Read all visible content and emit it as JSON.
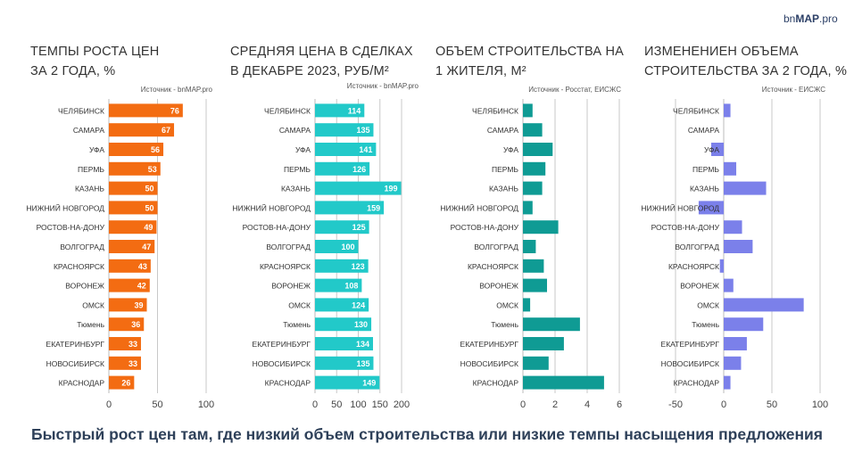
{
  "logo": {
    "text_a": "bn",
    "text_b": "MAP",
    "text_c": ".pro"
  },
  "footer": "Быстрый рост цен там, где низкий объем строительства или низкие темпы насыщения предложения",
  "chart_data": [
    {
      "type": "bar",
      "orientation": "horizontal",
      "title_line1": "ТЕМПЫ РОСТА ЦЕН",
      "title_line2": "ЗА 2 ГОДА, %",
      "source": "Источник - bnMAP.pro",
      "color": "#f36c12",
      "data_labels": true,
      "xlim": [
        0,
        100
      ],
      "ticks": [
        0,
        50,
        100
      ],
      "grid": true,
      "categories": [
        "ЧЕЛЯБИНСК",
        "САМАРА",
        "УФА",
        "ПЕРМЬ",
        "КАЗАНЬ",
        "НИЖНИЙ НОВГОРОД",
        "РОСТОВ-НА-ДОНУ",
        "ВОЛГОГРАД",
        "КРАСНОЯРСК",
        "ВОРОНЕЖ",
        "ОМСК",
        "Тюмень",
        "ЕКАТЕРИНБУРГ",
        "НОВОСИБИРСК",
        "КРАСНОДАР"
      ],
      "values": [
        76,
        67,
        56,
        53,
        50,
        50,
        49,
        47,
        43,
        42,
        39,
        36,
        33,
        33,
        26
      ]
    },
    {
      "type": "bar",
      "orientation": "horizontal",
      "title_line1": "СРЕДНЯЯ ЦЕНА  В СДЕЛКАХ",
      "title_line2": "В ДЕКАБРЕ 2023, РУБ/М²",
      "source": "Источник - bnMAP.pro",
      "color": "#22c9c9",
      "data_labels": true,
      "xlim": [
        0,
        200
      ],
      "ticks": [
        0,
        50,
        100,
        150,
        200
      ],
      "grid": true,
      "categories": [
        "ЧЕЛЯБИНСК",
        "САМАРА",
        "УФА",
        "ПЕРМЬ",
        "КАЗАНЬ",
        "НИЖНИЙ НОВГОРОД",
        "РОСТОВ-НА-ДОНУ",
        "ВОЛГОГРАД",
        "КРАСНОЯРСК",
        "ВОРОНЕЖ",
        "ОМСК",
        "Тюмень",
        "ЕКАТЕРИНБУРГ",
        "НОВОСИБИРСК",
        "КРАСНОДАР"
      ],
      "values": [
        114,
        135,
        141,
        126,
        199,
        159,
        125,
        100,
        123,
        108,
        124,
        130,
        134,
        135,
        149
      ]
    },
    {
      "type": "bar",
      "orientation": "horizontal",
      "title_line1": "ОБЪЕМ СТРОИТЕЛЬСТВА НА",
      "title_line2": "1 ЖИТЕЛЯ, М²",
      "source": "Источник - Росстат, ЕИСЖС",
      "color": "#0f9b94",
      "data_labels": false,
      "xlim": [
        0,
        6
      ],
      "ticks": [
        0,
        2,
        4,
        6
      ],
      "grid": true,
      "categories": [
        "ЧЕЛЯБИНСК",
        "САМАРА",
        "УФА",
        "ПЕРМЬ",
        "КАЗАНЬ",
        "НИЖНИЙ НОВГОРОД",
        "РОСТОВ-НА-ДОНУ",
        "ВОЛГОГРАД",
        "КРАСНОЯРСК",
        "ВОРОНЕЖ",
        "ОМСК",
        "Тюмень",
        "ЕКАТЕРИНБУРГ",
        "НОВОСИБИРСК",
        "КРАСНОДАР"
      ],
      "values": [
        0.6,
        1.2,
        1.85,
        1.4,
        1.2,
        0.6,
        2.2,
        0.8,
        1.3,
        1.5,
        0.45,
        3.55,
        2.55,
        1.6,
        5.05
      ]
    },
    {
      "type": "bar",
      "orientation": "horizontal",
      "title_line1": "ИЗМЕНЕНИЕН ОБЪЕМА",
      "title_line2": "СТРОИТЕЛЬСТВА ЗА 2 ГОДА, %",
      "source": "Источник - ЕИСЖС",
      "color": "#7b80ea",
      "data_labels": false,
      "xlim": [
        -50,
        100
      ],
      "ticks": [
        -50,
        0,
        50,
        100
      ],
      "grid": true,
      "categories": [
        "ЧЕЛЯБИНСК",
        "САМАРА",
        "УФА",
        "ПЕРМЬ",
        "КАЗАНЬ",
        "НИЖНИЙ НОВГОРОД",
        "РОСТОВ-НА-ДОНУ",
        "ВОЛГОГРАД",
        "КРАСНОЯРСК",
        "ВОРОНЕЖ",
        "ОМСК",
        "Тюмень",
        "ЕКАТЕРИНБУРГ",
        "НОВОСИБИРСК",
        "КРАСНОДАР"
      ],
      "values": [
        7,
        0,
        -13,
        13,
        44,
        -26,
        19,
        30,
        -4,
        10,
        83,
        41,
        24,
        18,
        7
      ]
    }
  ]
}
